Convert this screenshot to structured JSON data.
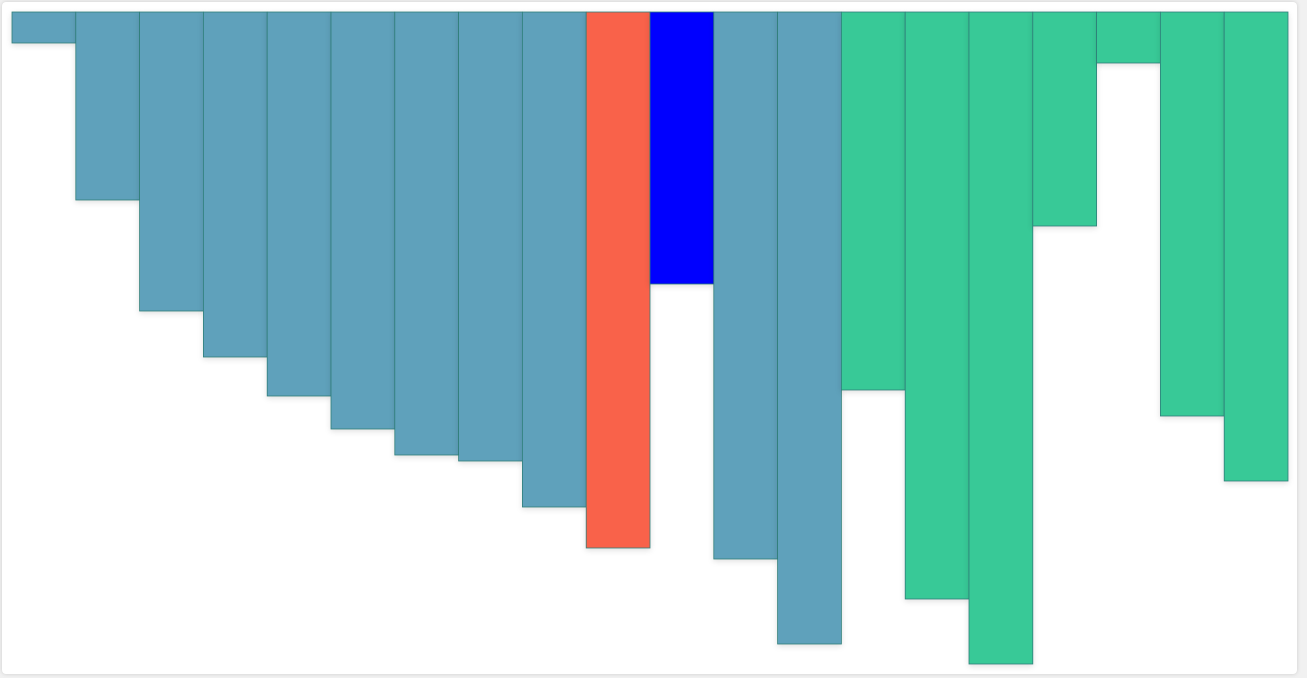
{
  "chart_data": {
    "type": "bar",
    "values": [
      31,
      188,
      299,
      345,
      384,
      417,
      443,
      449,
      495,
      536,
      272,
      547,
      632,
      378,
      587,
      652,
      214,
      51,
      404,
      469
    ],
    "colors": [
      "#5fa1bb",
      "#5fa1bb",
      "#5fa1bb",
      "#5fa1bb",
      "#5fa1bb",
      "#5fa1bb",
      "#5fa1bb",
      "#5fa1bb",
      "#5fa1bb",
      "#f9624a",
      "#0000ff",
      "#5fa1bb",
      "#5fa1bb",
      "#38c997",
      "#38c997",
      "#38c997",
      "#38c997",
      "#38c997",
      "#38c997",
      "#38c997"
    ]
  }
}
